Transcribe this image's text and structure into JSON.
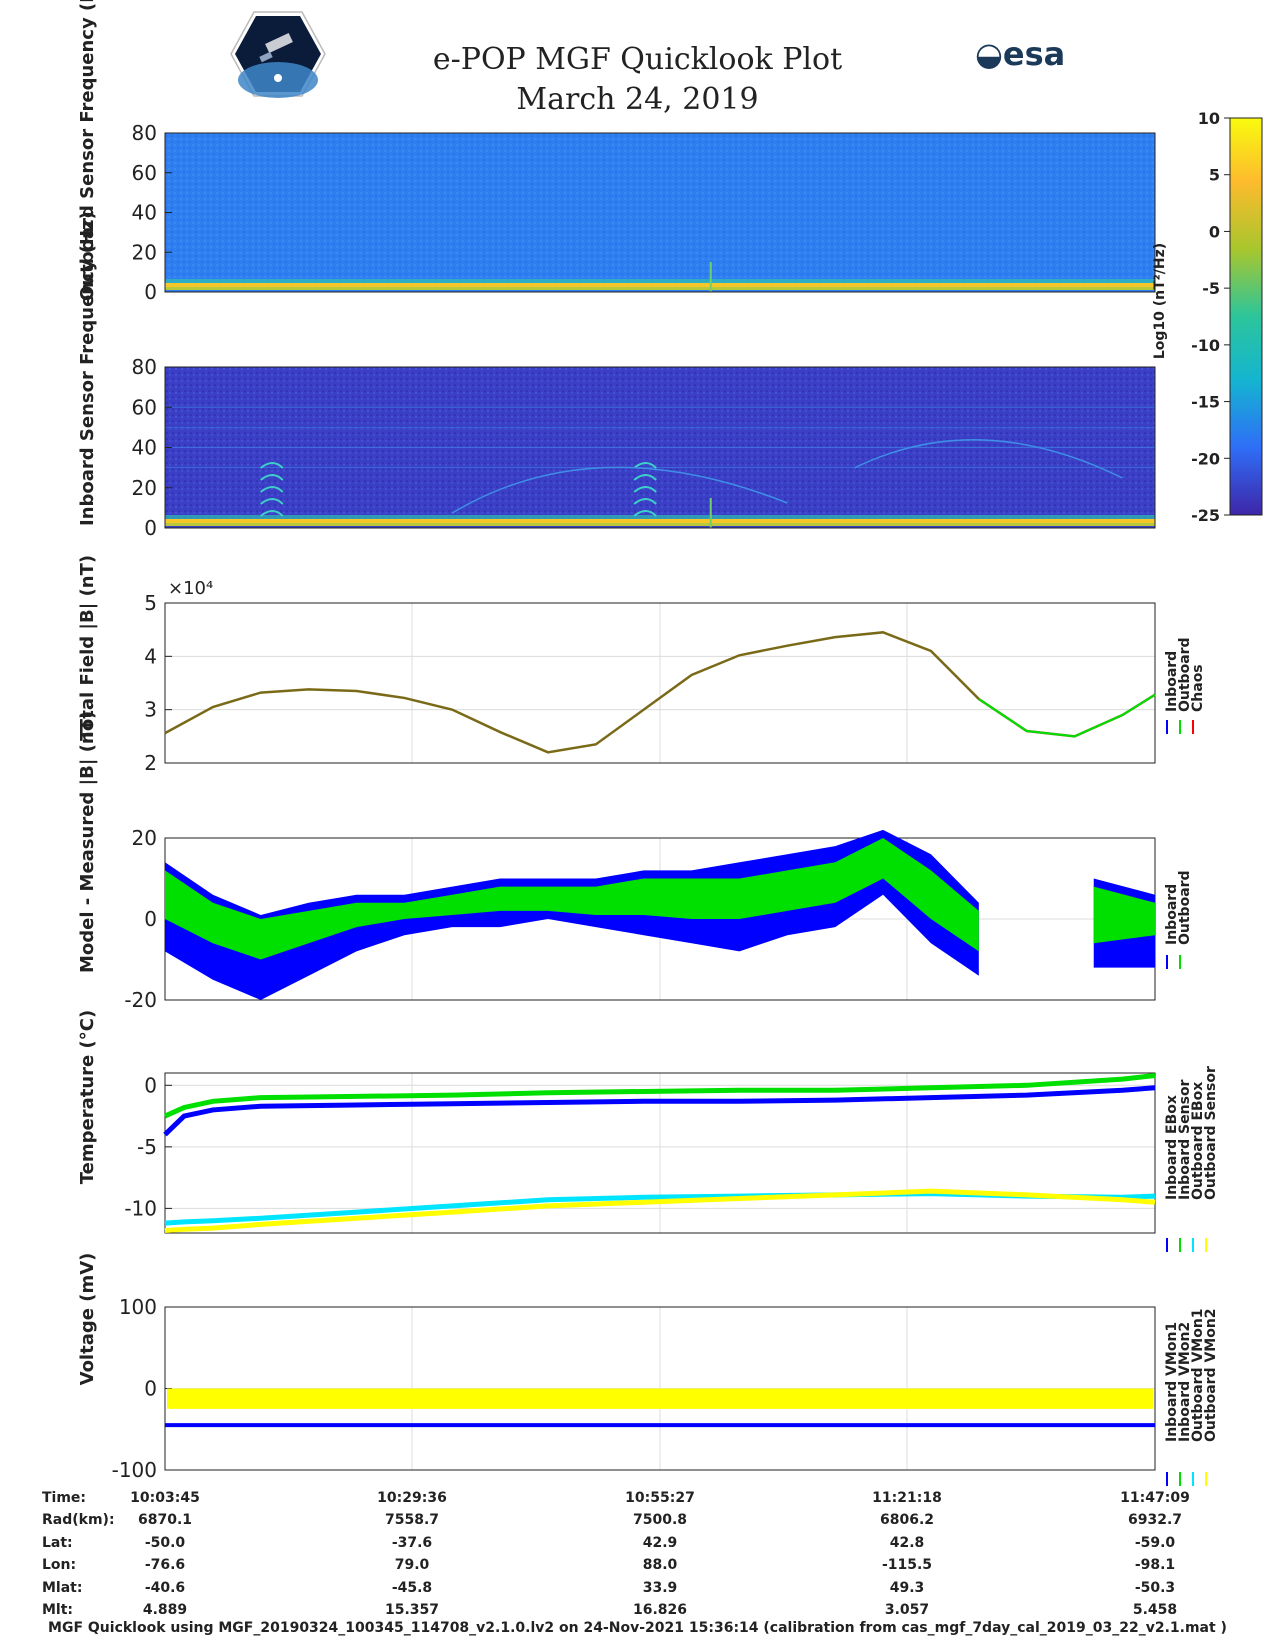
{
  "header": {
    "title": "e-POP MGF Quicklook Plot",
    "subtitle": "March 24, 2019",
    "logo_left": "CASSIOPE",
    "logo_right": "esa"
  },
  "colorbar": {
    "label": "Log10 (nT²/Hz)",
    "ticks": [
      10,
      5,
      0,
      -5,
      -10,
      -15,
      -20,
      -25
    ],
    "colormap": [
      "#3e26a8",
      "#2f6ef7",
      "#14b5d0",
      "#2cc59b",
      "#a9c62d",
      "#fdbb2d",
      "#f9fb0e"
    ]
  },
  "chart_data": [
    {
      "type": "heatmap",
      "ylabel": "Outboard Sensor Frequency (Hz)",
      "ylim": [
        0,
        80
      ],
      "yticks": [
        0,
        20,
        40,
        60,
        80
      ],
      "clim": [
        -25,
        10
      ]
    },
    {
      "type": "heatmap",
      "ylabel": "Inboard Sensor Frequency (Hz)",
      "ylim": [
        0,
        80
      ],
      "yticks": [
        0,
        20,
        40,
        60,
        80
      ],
      "clim": [
        -25,
        10
      ]
    },
    {
      "type": "line",
      "ylabel": "Total Field |B| (nT)",
      "scale_note": "×10⁴",
      "ylim": [
        2,
        5
      ],
      "yticks": [
        2,
        3,
        4,
        5
      ],
      "legend": [
        "Inboard",
        "Outboard",
        "Chaos"
      ],
      "colors": [
        "#0000ff",
        "#00e000",
        "#ff0000"
      ],
      "x_min": [
        0,
        5,
        10,
        15,
        20,
        25,
        30,
        35,
        40,
        45,
        50,
        55,
        60,
        65,
        70,
        75,
        80,
        85,
        90,
        95,
        100,
        103.4
      ],
      "series": [
        {
          "name": "Chaos",
          "values": [
            2.56,
            3.05,
            3.32,
            3.38,
            3.35,
            3.22,
            3.0,
            2.58,
            2.2,
            2.35,
            3.0,
            3.65,
            4.02,
            4.2,
            4.36,
            4.45,
            4.1,
            3.2,
            2.6,
            2.5,
            2.9,
            3.28
          ]
        }
      ]
    },
    {
      "type": "area",
      "ylabel": "Model - Measured |B| (nT)",
      "ylim": [
        -20,
        20
      ],
      "yticks": [
        -20,
        0,
        20
      ],
      "legend": [
        "Inboard",
        "Outboard"
      ],
      "colors": [
        "#0000ff",
        "#00e000"
      ],
      "x_min": [
        0,
        5,
        10,
        15,
        20,
        25,
        30,
        35,
        40,
        45,
        50,
        55,
        60,
        65,
        70,
        75,
        80,
        85,
        89.7,
        97,
        103.4
      ],
      "series": [
        {
          "name": "Inboard",
          "upper": [
            14,
            6,
            1,
            4,
            6,
            6,
            8,
            10,
            10,
            10,
            12,
            12,
            14,
            16,
            18,
            22,
            16,
            4,
            null,
            10,
            6
          ],
          "lower": [
            -8,
            -15,
            -20,
            -14,
            -8,
            -4,
            -2,
            -2,
            0,
            -2,
            -4,
            -6,
            -8,
            -4,
            -2,
            6,
            -6,
            -14,
            null,
            -12,
            -12
          ]
        },
        {
          "name": "Outboard",
          "upper": [
            12,
            4,
            0,
            2,
            4,
            4,
            6,
            8,
            8,
            8,
            10,
            10,
            10,
            12,
            14,
            20,
            12,
            2,
            null,
            8,
            4
          ],
          "lower": [
            0,
            -6,
            -10,
            -6,
            -2,
            0,
            1,
            2,
            2,
            1,
            1,
            0,
            0,
            2,
            4,
            10,
            0,
            -8,
            null,
            -6,
            -4
          ]
        }
      ]
    },
    {
      "type": "line",
      "ylabel": "Temperature (°C)",
      "ylim": [
        -12,
        1
      ],
      "yticks": [
        -10,
        -5,
        0
      ],
      "legend": [
        "Inboard EBox",
        "Inboard Sensor",
        "Outboard EBox",
        "Outboard Sensor"
      ],
      "colors": [
        "#0000ff",
        "#00e000",
        "#00e5ff",
        "#ffff00"
      ],
      "x_min": [
        0,
        2,
        5,
        10,
        20,
        30,
        40,
        50,
        60,
        70,
        80,
        90,
        100,
        103.4
      ],
      "series": [
        {
          "name": "Inboard EBox",
          "values": [
            -4,
            -2.5,
            -2,
            -1.7,
            -1.6,
            -1.5,
            -1.4,
            -1.3,
            -1.3,
            -1.2,
            -1.0,
            -0.8,
            -0.4,
            -0.2
          ]
        },
        {
          "name": "Inboard Sensor",
          "values": [
            -2.5,
            -1.8,
            -1.3,
            -1.0,
            -0.9,
            -0.8,
            -0.6,
            -0.5,
            -0.4,
            -0.4,
            -0.2,
            0.0,
            0.5,
            0.8
          ]
        },
        {
          "name": "Outboard EBox",
          "values": [
            -11.2,
            -11.1,
            -11.0,
            -10.8,
            -10.3,
            -9.8,
            -9.3,
            -9.1,
            -9.0,
            -8.9,
            -8.8,
            -9.0,
            -9.1,
            -9.0
          ]
        },
        {
          "name": "Outboard Sensor",
          "values": [
            -11.8,
            -11.7,
            -11.6,
            -11.3,
            -10.8,
            -10.3,
            -9.8,
            -9.5,
            -9.2,
            -8.9,
            -8.6,
            -8.9,
            -9.3,
            -9.5
          ]
        }
      ]
    },
    {
      "type": "area",
      "ylabel": "Voltage (mV)",
      "ylim": [
        -100,
        100
      ],
      "yticks": [
        -100,
        0,
        100
      ],
      "legend": [
        "Inboard VMon1",
        "Inboard VMon2",
        "Outboard VMon1",
        "Outboard VMon2"
      ],
      "colors": [
        "#0000ff",
        "#00e000",
        "#00e5ff",
        "#ffff00"
      ],
      "series": [
        {
          "name": "Inboard VMon1",
          "values": [
            -45
          ]
        },
        {
          "name": "Outboard VMon2",
          "upper": 0,
          "lower": -25
        }
      ]
    }
  ],
  "info_table": {
    "labels": [
      "Time:",
      "Rad(km):",
      "Lat:",
      "Lon:",
      "Mlat:",
      "Mlt:"
    ],
    "columns": [
      [
        "10:03:45",
        "6870.1",
        "-50.0",
        "-76.6",
        "-40.6",
        "4.889"
      ],
      [
        "10:29:36",
        "7558.7",
        "-37.6",
        "79.0",
        "-45.8",
        "15.357"
      ],
      [
        "10:55:27",
        "7500.8",
        "42.9",
        "88.0",
        "33.9",
        "16.826"
      ],
      [
        "11:21:18",
        "6806.2",
        "42.8",
        "-115.5",
        "49.3",
        "3.057"
      ],
      [
        "11:47:09",
        "6932.7",
        "-59.0",
        "-98.1",
        "-50.3",
        "5.458"
      ]
    ]
  },
  "footer": "MGF Quicklook using MGF_20190324_100345_114708_v2.1.0.lv2 on 24-Nov-2021 15:36:14 (calibration from cas_mgf_7day_cal_2019_03_22_v2.1.mat )"
}
